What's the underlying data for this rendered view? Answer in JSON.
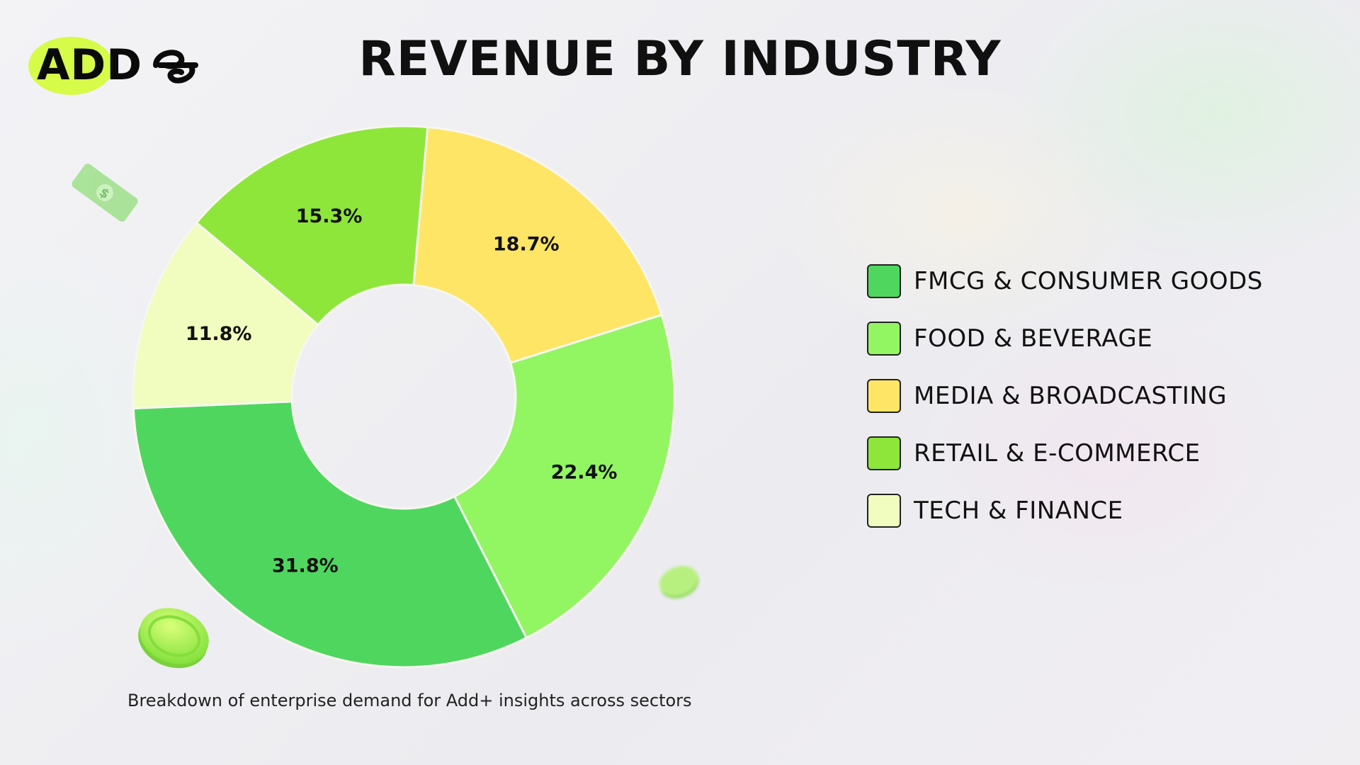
{
  "logo": {
    "text": "ADD"
  },
  "title": "REVENUE BY INDUSTRY",
  "caption": "Breakdown of enterprise demand for Add+ insights across sectors",
  "colors": {
    "fmcg": "#4fd65f",
    "food": "#92f562",
    "media": "#ffe566",
    "retail": "#8ee63b",
    "tech": "#f1fcbf",
    "accent": "#d6fb48"
  },
  "legend": [
    {
      "label": "FMCG & CONSUMER GOODS",
      "color": "#4fd65f"
    },
    {
      "label": "FOOD & BEVERAGE",
      "color": "#92f562"
    },
    {
      "label": "MEDIA & BROADCASTING",
      "color": "#ffe566"
    },
    {
      "label": "RETAIL & E-COMMERCE",
      "color": "#8ee63b"
    },
    {
      "label": "TECH & FINANCE",
      "color": "#f1fcbf"
    }
  ],
  "chart_data": {
    "type": "pie",
    "variant": "donut",
    "title": "REVENUE BY INDUSTRY",
    "categories": [
      "FMCG & CONSUMER GOODS",
      "FOOD & BEVERAGE",
      "MEDIA & BROADCASTING",
      "RETAIL & E-COMMERCE",
      "TECH & FINANCE"
    ],
    "values": [
      31.8,
      22.4,
      18.7,
      15.3,
      11.8
    ],
    "labels": [
      "31.8%",
      "22.4%",
      "18.7%",
      "15.3%",
      "11.8%"
    ],
    "colors": [
      "#4fd65f",
      "#92f562",
      "#ffe566",
      "#8ee63b",
      "#f1fcbf"
    ],
    "legend_position": "right"
  }
}
